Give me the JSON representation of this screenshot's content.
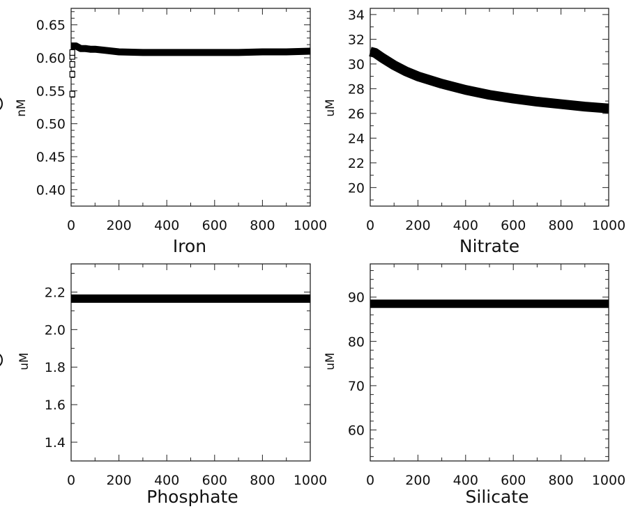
{
  "chart_data": [
    {
      "type": "line",
      "xlabel": "Iron",
      "ylabel": "nM",
      "xlim": [
        0,
        1000
      ],
      "ylim": [
        0.375,
        0.675
      ],
      "xticks": [
        0,
        200,
        400,
        600,
        800,
        1000
      ],
      "xtick_labels": [
        "0",
        "200",
        "400",
        "600",
        "800",
        "1000"
      ],
      "yticks": [
        0.4,
        0.45,
        0.5,
        0.55,
        0.6,
        0.65
      ],
      "ytick_labels": [
        "0.40",
        "0.45",
        "0.50",
        "0.55",
        "0.60",
        "0.65"
      ],
      "series": [
        {
          "x": [
            0,
            20,
            40,
            60,
            80,
            100,
            150,
            200,
            300,
            400,
            500,
            600,
            700,
            800,
            900,
            1000
          ],
          "y": [
            0.618,
            0.618,
            0.614,
            0.614,
            0.613,
            0.613,
            0.611,
            0.609,
            0.608,
            0.608,
            0.608,
            0.608,
            0.608,
            0.609,
            0.609,
            0.61
          ]
        }
      ],
      "early_points": {
        "x": [
          5,
          5,
          5,
          5,
          5
        ],
        "y": [
          0.545,
          0.575,
          0.59,
          0.602,
          0.608
        ]
      },
      "grid": false,
      "color": "#000000"
    },
    {
      "type": "line",
      "xlabel": "Nitrate",
      "ylabel": "uM",
      "xlim": [
        0,
        1000
      ],
      "ylim": [
        18.5,
        34.5
      ],
      "xticks": [
        0,
        200,
        400,
        600,
        800,
        1000
      ],
      "xtick_labels": [
        "0",
        "200",
        "400",
        "600",
        "800",
        "1000"
      ],
      "yticks": [
        20,
        22,
        24,
        26,
        28,
        30,
        32,
        34
      ],
      "ytick_labels": [
        "20",
        "22",
        "24",
        "26",
        "28",
        "30",
        "32",
        "34"
      ],
      "series": [
        {
          "x": [
            0,
            20,
            50,
            100,
            150,
            200,
            300,
            400,
            500,
            600,
            700,
            800,
            900,
            1000
          ],
          "y": [
            31.0,
            30.9,
            30.5,
            29.9,
            29.4,
            29.0,
            28.4,
            27.9,
            27.5,
            27.2,
            26.95,
            26.75,
            26.55,
            26.4
          ]
        }
      ],
      "grid": false,
      "color": "#000000"
    },
    {
      "type": "line",
      "xlabel": "Phosphate",
      "ylabel": "uM",
      "xlim": [
        0,
        1000
      ],
      "ylim": [
        1.3,
        2.35
      ],
      "xticks": [
        0,
        200,
        400,
        600,
        800,
        1000
      ],
      "xtick_labels": [
        "0",
        "200",
        "400",
        "600",
        "800",
        "1000"
      ],
      "yticks": [
        1.4,
        1.6,
        1.8,
        2.0,
        2.2
      ],
      "ytick_labels": [
        "1.4",
        "1.6",
        "1.8",
        "2.0",
        "2.2"
      ],
      "series": [
        {
          "x": [
            0,
            1000
          ],
          "y": [
            2.165,
            2.165
          ]
        }
      ],
      "grid": false,
      "color": "#000000"
    },
    {
      "type": "line",
      "xlabel": "Silicate",
      "ylabel": "uM",
      "xlim": [
        0,
        1000
      ],
      "ylim": [
        53,
        97.5
      ],
      "xticks": [
        0,
        200,
        400,
        600,
        800,
        1000
      ],
      "xtick_labels": [
        "0",
        "200",
        "400",
        "600",
        "800",
        "1000"
      ],
      "yticks": [
        60,
        70,
        80,
        90
      ],
      "ytick_labels": [
        "60",
        "70",
        "80",
        "90"
      ],
      "series": [
        {
          "x": [
            0,
            1000
          ],
          "y": [
            88.5,
            88.5
          ]
        }
      ],
      "grid": false,
      "color": "#000000"
    }
  ]
}
